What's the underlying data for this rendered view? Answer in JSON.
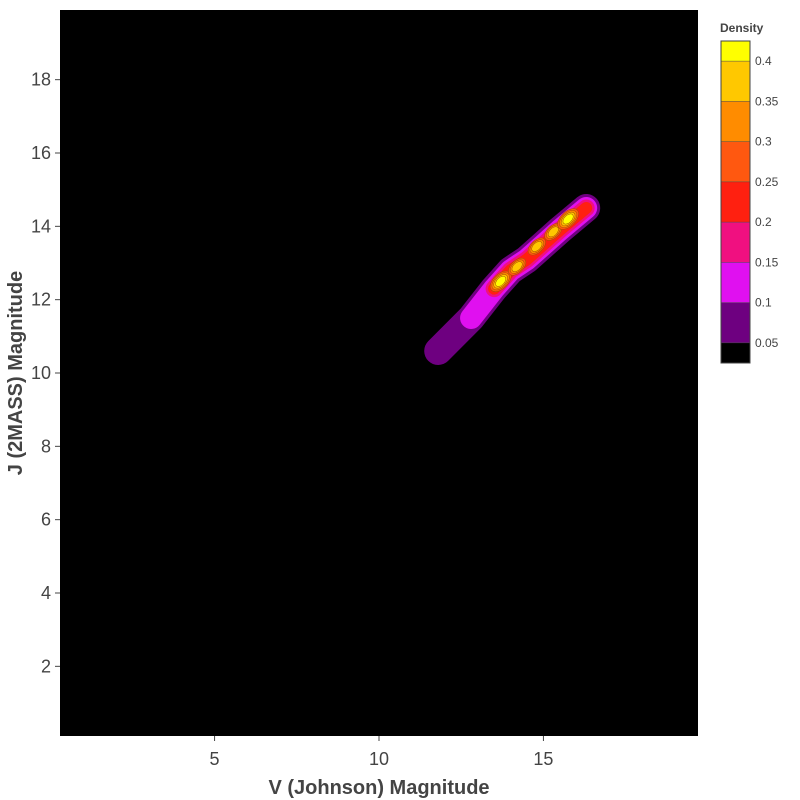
{
  "chart_data": {
    "type": "contour",
    "xlabel": "V (Johnson) Magnitude",
    "ylabel": "J (2MASS) Magnitude",
    "xlim": [
      0.3,
      19.7
    ],
    "ylim": [
      0.1,
      19.9
    ],
    "xticks": [
      5,
      10,
      15
    ],
    "yticks": [
      2,
      4,
      6,
      8,
      10,
      12,
      14,
      16,
      18
    ],
    "grid": false,
    "background": "#000000",
    "colorbar": {
      "title": "Density",
      "range": [
        0.025,
        0.425
      ],
      "ticks": [
        "0.05",
        "0.1",
        "0.15",
        "0.2",
        "0.25",
        "0.3",
        "0.35",
        "0.4"
      ],
      "levels": [
        0.05,
        0.1,
        0.15,
        0.2,
        0.25,
        0.3,
        0.35,
        0.4
      ],
      "colors": [
        "#000000",
        "#6e0080",
        "#e010f0",
        "#f01080",
        "#ff2010",
        "#ff5810",
        "#ff8c00",
        "#ffc800",
        "#ffff00"
      ]
    },
    "ridge": {
      "x": [
        11.8,
        12.8,
        13.5,
        14.0,
        14.5,
        15.0,
        15.5,
        15.9,
        16.3
      ],
      "y": [
        10.6,
        11.5,
        12.3,
        12.8,
        13.1,
        13.5,
        13.9,
        14.2,
        14.5
      ]
    },
    "peaks": [
      {
        "x": 13.7,
        "y": 12.5,
        "density": 0.4
      },
      {
        "x": 14.2,
        "y": 12.9,
        "density": 0.38
      },
      {
        "x": 14.8,
        "y": 13.45,
        "density": 0.39
      },
      {
        "x": 15.3,
        "y": 13.85,
        "density": 0.38
      },
      {
        "x": 15.75,
        "y": 14.2,
        "density": 0.42
      }
    ]
  },
  "colors": {
    "axis_text": "#444444",
    "tick_color": "#444444"
  }
}
